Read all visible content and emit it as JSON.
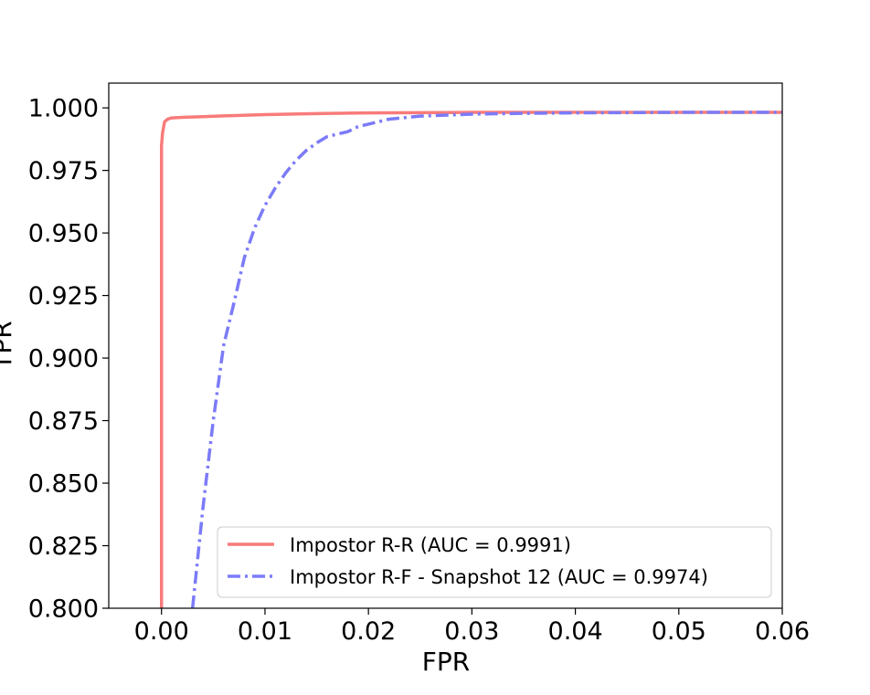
{
  "chart_data": {
    "type": "line",
    "title": "",
    "xlabel": "FPR",
    "ylabel": "TPR",
    "xlim": [
      -0.0051,
      0.06
    ],
    "ylim": [
      0.8,
      1.0099
    ],
    "xticks": [
      0.0,
      0.01,
      0.02,
      0.03,
      0.04,
      0.05,
      0.06
    ],
    "xtick_labels": [
      "0.00",
      "0.01",
      "0.02",
      "0.03",
      "0.04",
      "0.05",
      "0.06"
    ],
    "yticks": [
      0.8,
      0.825,
      0.85,
      0.875,
      0.9,
      0.925,
      0.95,
      0.975,
      1.0
    ],
    "ytick_labels": [
      "0.800",
      "0.825",
      "0.850",
      "0.875",
      "0.900",
      "0.925",
      "0.950",
      "0.975",
      "1.000"
    ],
    "grid": false,
    "legend_position": "lower-right",
    "series": [
      {
        "name": "Impostor R-R (AUC = 0.9991)",
        "color": "#f87b7b",
        "style": "solid",
        "x": [
          0.0,
          0.0,
          0.0,
          0.0001,
          0.0003,
          0.0006,
          0.001,
          0.002,
          0.004,
          0.006,
          0.01,
          0.015,
          0.02,
          0.025,
          0.03,
          0.04,
          0.05,
          0.06
        ],
        "y": [
          0.8,
          0.9,
          0.985,
          0.99,
          0.9945,
          0.9955,
          0.996,
          0.9962,
          0.9965,
          0.9968,
          0.9973,
          0.9977,
          0.998,
          0.9981,
          0.9982,
          0.9982,
          0.9982,
          0.9982
        ]
      },
      {
        "name": "Impostor R-F - Snapshot 12 (AUC = 0.9974)",
        "color": "#7b7bf8",
        "style": "dashdot",
        "x": [
          0.003,
          0.004,
          0.005,
          0.0055,
          0.006,
          0.007,
          0.008,
          0.009,
          0.01,
          0.011,
          0.012,
          0.013,
          0.014,
          0.015,
          0.016,
          0.017,
          0.018,
          0.019,
          0.02,
          0.022,
          0.025,
          0.03,
          0.035,
          0.04,
          0.05,
          0.06
        ],
        "y": [
          0.8,
          0.84,
          0.875,
          0.89,
          0.905,
          0.922,
          0.94,
          0.952,
          0.961,
          0.968,
          0.974,
          0.979,
          0.983,
          0.986,
          0.9885,
          0.9895,
          0.9905,
          0.9925,
          0.9935,
          0.9955,
          0.9967,
          0.9975,
          0.9978,
          0.998,
          0.9982,
          0.9982
        ]
      }
    ]
  }
}
